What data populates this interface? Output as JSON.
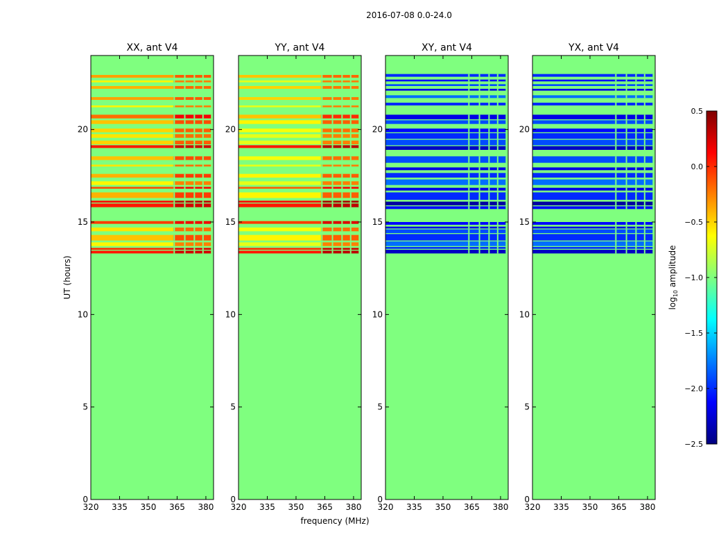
{
  "figure": {
    "suptitle": "2016-07-08 0.0-24.0",
    "xlabel": "frequency (MHz)",
    "ylabel": "UT (hours)"
  },
  "colorbar": {
    "label_main": "log",
    "label_sub": "10",
    "label_tail": " amplitude",
    "range": [
      -2.5,
      0.5
    ],
    "ticks": [
      0.5,
      0.0,
      -0.5,
      -1.0,
      -1.5,
      -2.0,
      -2.5
    ],
    "tick_labels": [
      "0.5",
      "0.0",
      "−0.5",
      "−1.0",
      "−1.5",
      "−2.0",
      "−2.5"
    ],
    "colormap": "jet",
    "colormap_stops": [
      "#00007f",
      "#0000ff",
      "#007fff",
      "#00ffff",
      "#7fff7f",
      "#ffff00",
      "#ff7f00",
      "#ff0000",
      "#7f0000"
    ]
  },
  "chart_data": [
    {
      "type": "heatmap",
      "title": "XX, ant V4",
      "xlim": [
        320,
        384
      ],
      "ylim": [
        0,
        24
      ],
      "xticks": [
        320,
        335,
        350,
        365,
        380
      ],
      "yticks": [
        0,
        5,
        10,
        15,
        20
      ],
      "background_value": -1.0,
      "data_start_hour": 13.3,
      "bands": [
        {
          "y0": 13.3,
          "y1": 13.45,
          "value": 0.05,
          "style": "line"
        },
        {
          "y0": 13.5,
          "y1": 13.6,
          "value": 0.0,
          "style": "line"
        },
        {
          "y0": 13.7,
          "y1": 13.9,
          "value": -0.6,
          "style": "band"
        },
        {
          "y0": 14.0,
          "y1": 14.3,
          "value": -0.45,
          "style": "band"
        },
        {
          "y0": 14.5,
          "y1": 14.7,
          "value": -0.55,
          "style": "band"
        },
        {
          "y0": 14.9,
          "y1": 15.05,
          "value": -0.05,
          "style": "line"
        },
        {
          "y0": 15.8,
          "y1": 16.0,
          "value": 0.05,
          "style": "line"
        },
        {
          "y0": 16.05,
          "y1": 16.15,
          "value": 0.1,
          "style": "line"
        },
        {
          "y0": 16.3,
          "y1": 16.6,
          "value": -0.4,
          "style": "band"
        },
        {
          "y0": 16.8,
          "y1": 16.9,
          "value": -0.1,
          "style": "line"
        },
        {
          "y0": 17.0,
          "y1": 17.2,
          "value": -0.6,
          "style": "band"
        },
        {
          "y0": 17.4,
          "y1": 17.6,
          "value": -0.4,
          "style": "band"
        },
        {
          "y0": 18.0,
          "y1": 18.1,
          "value": -0.55,
          "style": "band"
        },
        {
          "y0": 18.35,
          "y1": 18.55,
          "value": -0.45,
          "style": "band"
        },
        {
          "y0": 19.0,
          "y1": 19.15,
          "value": 0.05,
          "style": "line"
        },
        {
          "y0": 19.2,
          "y1": 19.4,
          "value": -0.5,
          "style": "band"
        },
        {
          "y0": 19.55,
          "y1": 19.75,
          "value": -0.55,
          "style": "band"
        },
        {
          "y0": 19.85,
          "y1": 20.05,
          "value": -0.5,
          "style": "band"
        },
        {
          "y0": 20.3,
          "y1": 20.5,
          "value": -0.45,
          "style": "band"
        },
        {
          "y0": 20.6,
          "y1": 20.8,
          "value": -0.2,
          "style": "band"
        },
        {
          "y0": 21.2,
          "y1": 21.3,
          "value": -0.6,
          "style": "band"
        },
        {
          "y0": 21.6,
          "y1": 21.75,
          "value": -0.35,
          "style": "line"
        },
        {
          "y0": 22.2,
          "y1": 22.35,
          "value": -0.4,
          "style": "line"
        },
        {
          "y0": 22.55,
          "y1": 22.65,
          "value": -0.6,
          "style": "band"
        },
        {
          "y0": 22.8,
          "y1": 22.95,
          "value": -0.35,
          "style": "line"
        }
      ],
      "hot_region": {
        "x0": 363,
        "x1": 383,
        "delta": 0.35
      },
      "gaps_x": [
        363.5,
        369,
        374,
        378.5,
        383
      ]
    },
    {
      "type": "heatmap",
      "title": "YY, ant V4",
      "xlim": [
        320,
        384
      ],
      "ylim": [
        0,
        24
      ],
      "xticks": [
        320,
        335,
        350,
        365,
        380
      ],
      "yticks": [
        0,
        5,
        10,
        15,
        20
      ],
      "background_value": -1.0,
      "data_start_hour": 13.3,
      "bands": [
        {
          "y0": 13.3,
          "y1": 13.45,
          "value": 0.05,
          "style": "line"
        },
        {
          "y0": 13.5,
          "y1": 13.6,
          "value": 0.0,
          "style": "line"
        },
        {
          "y0": 13.7,
          "y1": 13.9,
          "value": -0.7,
          "style": "band"
        },
        {
          "y0": 14.0,
          "y1": 14.3,
          "value": -0.6,
          "style": "band"
        },
        {
          "y0": 14.5,
          "y1": 14.7,
          "value": -0.65,
          "style": "band"
        },
        {
          "y0": 14.9,
          "y1": 15.05,
          "value": -0.05,
          "style": "line"
        },
        {
          "y0": 15.8,
          "y1": 16.0,
          "value": 0.05,
          "style": "line"
        },
        {
          "y0": 16.05,
          "y1": 16.15,
          "value": 0.1,
          "style": "line"
        },
        {
          "y0": 16.3,
          "y1": 16.6,
          "value": -0.6,
          "style": "band"
        },
        {
          "y0": 16.8,
          "y1": 16.9,
          "value": -0.15,
          "style": "line"
        },
        {
          "y0": 17.0,
          "y1": 17.2,
          "value": -0.7,
          "style": "band"
        },
        {
          "y0": 17.4,
          "y1": 17.6,
          "value": -0.6,
          "style": "band"
        },
        {
          "y0": 18.0,
          "y1": 18.1,
          "value": -0.7,
          "style": "band"
        },
        {
          "y0": 18.35,
          "y1": 18.55,
          "value": -0.65,
          "style": "band"
        },
        {
          "y0": 19.0,
          "y1": 19.15,
          "value": 0.05,
          "style": "line"
        },
        {
          "y0": 19.2,
          "y1": 19.4,
          "value": -0.7,
          "style": "band"
        },
        {
          "y0": 19.55,
          "y1": 19.75,
          "value": -0.7,
          "style": "band"
        },
        {
          "y0": 19.85,
          "y1": 20.05,
          "value": -0.65,
          "style": "band"
        },
        {
          "y0": 20.3,
          "y1": 20.5,
          "value": -0.6,
          "style": "band"
        },
        {
          "y0": 20.6,
          "y1": 20.8,
          "value": -0.45,
          "style": "band"
        },
        {
          "y0": 21.2,
          "y1": 21.3,
          "value": -0.7,
          "style": "band"
        },
        {
          "y0": 21.6,
          "y1": 21.75,
          "value": -0.5,
          "style": "line"
        },
        {
          "y0": 22.2,
          "y1": 22.35,
          "value": -0.5,
          "style": "line"
        },
        {
          "y0": 22.55,
          "y1": 22.65,
          "value": -0.7,
          "style": "band"
        },
        {
          "y0": 22.8,
          "y1": 22.95,
          "value": -0.45,
          "style": "line"
        }
      ],
      "hot_region": {
        "x0": 363,
        "x1": 383,
        "delta": 0.45
      },
      "gaps_x": [
        363.5,
        369,
        374,
        378.5,
        383
      ]
    },
    {
      "type": "heatmap",
      "title": "XY, ant V4",
      "xlim": [
        320,
        384
      ],
      "ylim": [
        0,
        24
      ],
      "xticks": [
        320,
        335,
        350,
        365,
        380
      ],
      "yticks": [
        0,
        5,
        10,
        15,
        20
      ],
      "background_value": -1.0,
      "data_start_hour": 13.3,
      "bands": [
        {
          "y0": 13.3,
          "y1": 13.5,
          "value": -2.3,
          "style": "band"
        },
        {
          "y0": 13.55,
          "y1": 13.65,
          "value": -2.0,
          "style": "line"
        },
        {
          "y0": 13.7,
          "y1": 13.95,
          "value": -1.8,
          "style": "band"
        },
        {
          "y0": 14.0,
          "y1": 14.35,
          "value": -2.0,
          "style": "band"
        },
        {
          "y0": 14.4,
          "y1": 14.6,
          "value": -1.9,
          "style": "band"
        },
        {
          "y0": 14.65,
          "y1": 14.75,
          "value": -2.2,
          "style": "line"
        },
        {
          "y0": 14.85,
          "y1": 15.0,
          "value": -2.1,
          "style": "line"
        },
        {
          "y0": 15.7,
          "y1": 15.85,
          "value": -2.1,
          "style": "line"
        },
        {
          "y0": 15.9,
          "y1": 16.1,
          "value": -2.4,
          "style": "band"
        },
        {
          "y0": 16.2,
          "y1": 16.6,
          "value": -2.0,
          "style": "band"
        },
        {
          "y0": 16.7,
          "y1": 16.85,
          "value": -2.2,
          "style": "line"
        },
        {
          "y0": 17.0,
          "y1": 17.3,
          "value": -1.8,
          "style": "band"
        },
        {
          "y0": 17.4,
          "y1": 17.65,
          "value": -2.0,
          "style": "band"
        },
        {
          "y0": 17.8,
          "y1": 17.95,
          "value": -2.2,
          "style": "line"
        },
        {
          "y0": 18.2,
          "y1": 18.55,
          "value": -1.9,
          "style": "band"
        },
        {
          "y0": 18.9,
          "y1": 19.1,
          "value": -2.3,
          "style": "band"
        },
        {
          "y0": 19.15,
          "y1": 19.45,
          "value": -1.9,
          "style": "band"
        },
        {
          "y0": 19.5,
          "y1": 19.8,
          "value": -2.0,
          "style": "band"
        },
        {
          "y0": 19.85,
          "y1": 20.05,
          "value": -2.1,
          "style": "band"
        },
        {
          "y0": 20.3,
          "y1": 20.5,
          "value": -1.9,
          "style": "band"
        },
        {
          "y0": 20.55,
          "y1": 20.8,
          "value": -2.2,
          "style": "band"
        },
        {
          "y0": 21.3,
          "y1": 21.45,
          "value": -2.0,
          "style": "line"
        },
        {
          "y0": 21.7,
          "y1": 21.85,
          "value": -1.8,
          "style": "line"
        },
        {
          "y0": 22.1,
          "y1": 22.2,
          "value": -2.2,
          "style": "line"
        },
        {
          "y0": 22.35,
          "y1": 22.45,
          "value": -1.9,
          "style": "line"
        },
        {
          "y0": 22.6,
          "y1": 22.7,
          "value": -2.1,
          "style": "line"
        },
        {
          "y0": 22.85,
          "y1": 23.0,
          "value": -2.0,
          "style": "line"
        }
      ],
      "hot_region": {
        "x0": 363,
        "x1": 383,
        "delta": 0.0
      },
      "gaps_x": [
        363.5,
        369,
        374,
        378.5,
        383
      ]
    },
    {
      "type": "heatmap",
      "title": "YX, ant V4",
      "xlim": [
        320,
        384
      ],
      "ylim": [
        0,
        24
      ],
      "xticks": [
        320,
        335,
        350,
        365,
        380
      ],
      "yticks": [
        0,
        5,
        10,
        15,
        20
      ],
      "background_value": -1.0,
      "data_start_hour": 13.3,
      "bands": [
        {
          "y0": 13.3,
          "y1": 13.5,
          "value": -2.3,
          "style": "band"
        },
        {
          "y0": 13.55,
          "y1": 13.65,
          "value": -2.0,
          "style": "line"
        },
        {
          "y0": 13.7,
          "y1": 13.95,
          "value": -1.8,
          "style": "band"
        },
        {
          "y0": 14.0,
          "y1": 14.35,
          "value": -2.0,
          "style": "band"
        },
        {
          "y0": 14.4,
          "y1": 14.6,
          "value": -1.9,
          "style": "band"
        },
        {
          "y0": 14.65,
          "y1": 14.75,
          "value": -2.2,
          "style": "line"
        },
        {
          "y0": 14.85,
          "y1": 15.0,
          "value": -2.1,
          "style": "line"
        },
        {
          "y0": 15.7,
          "y1": 15.85,
          "value": -2.1,
          "style": "line"
        },
        {
          "y0": 15.9,
          "y1": 16.1,
          "value": -2.4,
          "style": "band"
        },
        {
          "y0": 16.2,
          "y1": 16.6,
          "value": -2.0,
          "style": "band"
        },
        {
          "y0": 16.7,
          "y1": 16.85,
          "value": -2.2,
          "style": "line"
        },
        {
          "y0": 17.0,
          "y1": 17.3,
          "value": -1.8,
          "style": "band"
        },
        {
          "y0": 17.4,
          "y1": 17.65,
          "value": -2.0,
          "style": "band"
        },
        {
          "y0": 17.8,
          "y1": 17.95,
          "value": -2.2,
          "style": "line"
        },
        {
          "y0": 18.2,
          "y1": 18.55,
          "value": -1.9,
          "style": "band"
        },
        {
          "y0": 18.9,
          "y1": 19.1,
          "value": -2.3,
          "style": "band"
        },
        {
          "y0": 19.15,
          "y1": 19.45,
          "value": -1.9,
          "style": "band"
        },
        {
          "y0": 19.5,
          "y1": 19.8,
          "value": -2.0,
          "style": "band"
        },
        {
          "y0": 19.85,
          "y1": 20.05,
          "value": -2.1,
          "style": "band"
        },
        {
          "y0": 20.3,
          "y1": 20.5,
          "value": -1.9,
          "style": "band"
        },
        {
          "y0": 20.55,
          "y1": 20.8,
          "value": -2.2,
          "style": "band"
        },
        {
          "y0": 21.3,
          "y1": 21.45,
          "value": -2.0,
          "style": "line"
        },
        {
          "y0": 21.7,
          "y1": 21.85,
          "value": -1.8,
          "style": "line"
        },
        {
          "y0": 22.1,
          "y1": 22.2,
          "value": -2.2,
          "style": "line"
        },
        {
          "y0": 22.35,
          "y1": 22.45,
          "value": -1.9,
          "style": "line"
        },
        {
          "y0": 22.6,
          "y1": 22.7,
          "value": -2.1,
          "style": "line"
        },
        {
          "y0": 22.85,
          "y1": 23.0,
          "value": -2.0,
          "style": "line"
        }
      ],
      "hot_region": {
        "x0": 363,
        "x1": 383,
        "delta": 0.0
      },
      "gaps_x": [
        363.5,
        369,
        374,
        378.5,
        383
      ]
    }
  ]
}
